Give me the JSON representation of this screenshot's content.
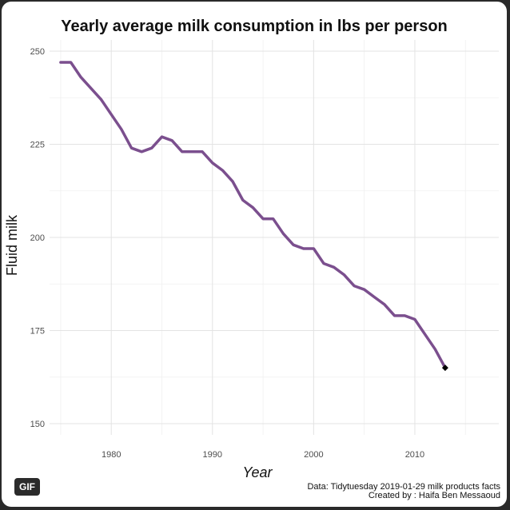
{
  "badge": "GIF",
  "chart_data": {
    "type": "line",
    "title": "Yearly average milk consumption in lbs per person",
    "xlabel": "Year",
    "ylabel": "Fluid milk",
    "xlim": [
      1973.9,
      2018.3
    ],
    "ylim": [
      147,
      253
    ],
    "x_ticks": [
      1980,
      1990,
      2000,
      2010
    ],
    "y_ticks": [
      150,
      175,
      200,
      225,
      250
    ],
    "grid": true,
    "line_color": "#7b4f8e",
    "end_point_color": "#000000",
    "series": [
      {
        "x": [
          1975,
          1976,
          1977,
          1978,
          1979,
          1980,
          1981,
          1982,
          1983,
          1984,
          1985,
          1986,
          1987,
          1988,
          1989,
          1990,
          1991,
          1992,
          1993,
          1994,
          1995,
          1996,
          1997,
          1998,
          1999,
          2000,
          2001,
          2002,
          2003,
          2004,
          2005,
          2006,
          2007,
          2008,
          2009,
          2010,
          2011,
          2012,
          2013
        ],
        "values": [
          247,
          247,
          243,
          240,
          237,
          233,
          229,
          224,
          223,
          224,
          227,
          226,
          223,
          223,
          223,
          220,
          218,
          215,
          210,
          208,
          205,
          205,
          201,
          198,
          197,
          197,
          193,
          192,
          190,
          187,
          186,
          184,
          182,
          179,
          179,
          178,
          174,
          170,
          165
        ]
      }
    ]
  },
  "caption": {
    "line1": "Data: Tidytuesday 2019-01-29 milk products facts",
    "line2": "Created by : Haifa Ben Messaoud"
  }
}
